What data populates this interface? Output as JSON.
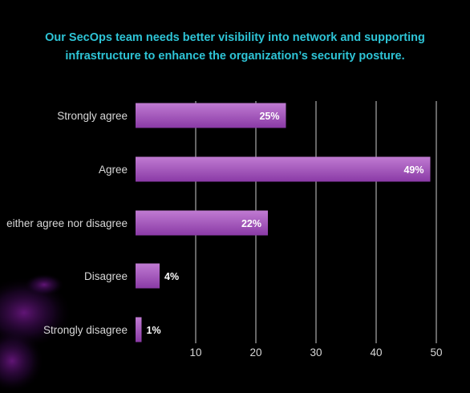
{
  "title_lines": [
    "Our SecOps team needs better visibility into network and supporting",
    "infrastructure to enhance the organization’s security posture."
  ],
  "colors": {
    "background": "#000000",
    "title": "#2ec4d6",
    "bar_top": "#c07bd2",
    "bar_bottom": "#8a3aa6",
    "grid": "#a9a9a9",
    "text": "#d8d8d8",
    "data_label_text": "#ffffff"
  },
  "chart_data": {
    "type": "bar",
    "orientation": "horizontal",
    "title": "Our SecOps team needs better visibility into network and supporting infrastructure to enhance the organization’s security posture.",
    "categories": [
      "Strongly agree",
      "Agree",
      "either agree nor disagree",
      "Disagree",
      "Strongly disagree"
    ],
    "values": [
      25,
      49,
      22,
      4,
      1
    ],
    "data_labels": [
      "25%",
      "49%",
      "22%",
      "4%",
      "1%"
    ],
    "xlim": [
      0,
      50
    ],
    "x_ticks": [
      "10",
      "20",
      "30",
      "40",
      "50"
    ],
    "x_tick_values": [
      10,
      20,
      30,
      40,
      50
    ],
    "xlabel": "",
    "ylabel": "",
    "grid": "vertical",
    "legend": "none"
  }
}
